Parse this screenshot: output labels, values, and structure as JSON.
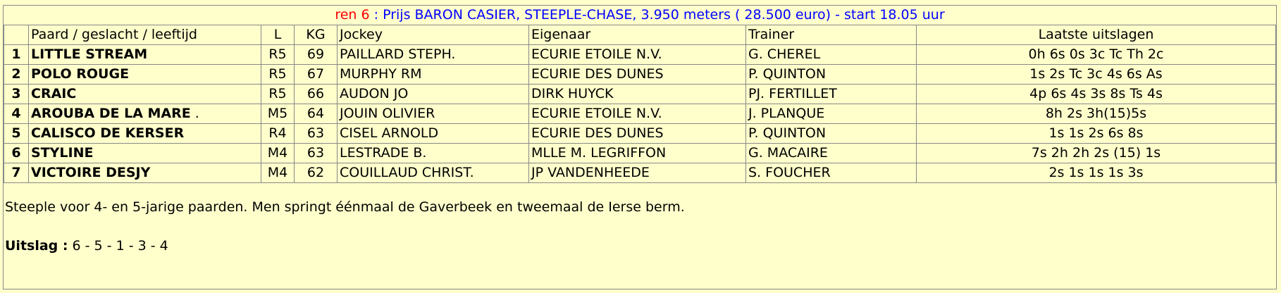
{
  "race": {
    "number_label": "ren 6",
    "description": ": Prijs BARON CASIER, STEEPLE-CHASE, 3.950 meters ( 28.500 euro) - start 18.05 uur"
  },
  "headers": {
    "horse": "Paard / geslacht / leeftijd",
    "l": "L",
    "kg": "KG",
    "jockey": "Jockey",
    "owner": "Eigenaar",
    "trainer": "Trainer",
    "results": "Laatste uitslagen"
  },
  "rows": [
    {
      "num": "1",
      "horse": "LITTLE STREAM",
      "l": "R5",
      "kg": "69",
      "jockey": "PAILLARD STEPH.",
      "owner": "ECURIE ETOILE N.V.",
      "trainer": "G. CHEREL",
      "results": "0h 6s 0s 3c Tc Th 2c"
    },
    {
      "num": "2",
      "horse": "POLO ROUGE",
      "l": "R5",
      "kg": "67",
      "jockey": "MURPHY RM",
      "owner": "ECURIE DES DUNES",
      "trainer": "P. QUINTON",
      "results": "1s 2s Tc 3c 4s 6s As"
    },
    {
      "num": "3",
      "horse": "CRAIC",
      "l": "R5",
      "kg": "66",
      "jockey": "AUDON JO",
      "owner": "DIRK HUYCK",
      "trainer": "PJ. FERTILLET",
      "results": "4p 6s 4s 3s 8s Ts 4s"
    },
    {
      "num": "4",
      "horse": "AROUBA DE LA MARE",
      "suffix": " .",
      "l": "M5",
      "kg": "64",
      "jockey": "JOUIN OLIVIER",
      "owner": "ECURIE ETOILE N.V.",
      "trainer": "J. PLANQUE",
      "results": "8h 2s 3h(15)5s"
    },
    {
      "num": "5",
      "horse": "CALISCO DE KERSER",
      "l": "R4",
      "kg": "63",
      "jockey": "CISEL ARNOLD",
      "owner": "ECURIE DES DUNES",
      "trainer": "P. QUINTON",
      "results": "1s 1s 2s 6s 8s"
    },
    {
      "num": "6",
      "horse": "STYLINE",
      "l": "M4",
      "kg": "63",
      "jockey": "LESTRADE B.",
      "owner": "MLLE M. LEGRIFFON",
      "trainer": "G. MACAIRE",
      "results": "7s 2h 2h 2s (15) 1s"
    },
    {
      "num": "7",
      "horse": "VICTOIRE DESJY",
      "l": "M4",
      "kg": "62",
      "jockey": "COUILLAUD CHRIST.",
      "owner": "JP VANDENHEEDE",
      "trainer": "S. FOUCHER",
      "results": "2s 1s 1s 1s 3s"
    }
  ],
  "note": "Steeple voor 4- en 5-jarige paarden. Men springt éénmaal de Gaverbeek en tweemaal de Ierse berm.",
  "result": {
    "label": "Uitslag :",
    "value": " 6 - 5 - 1 - 3 - 4"
  }
}
